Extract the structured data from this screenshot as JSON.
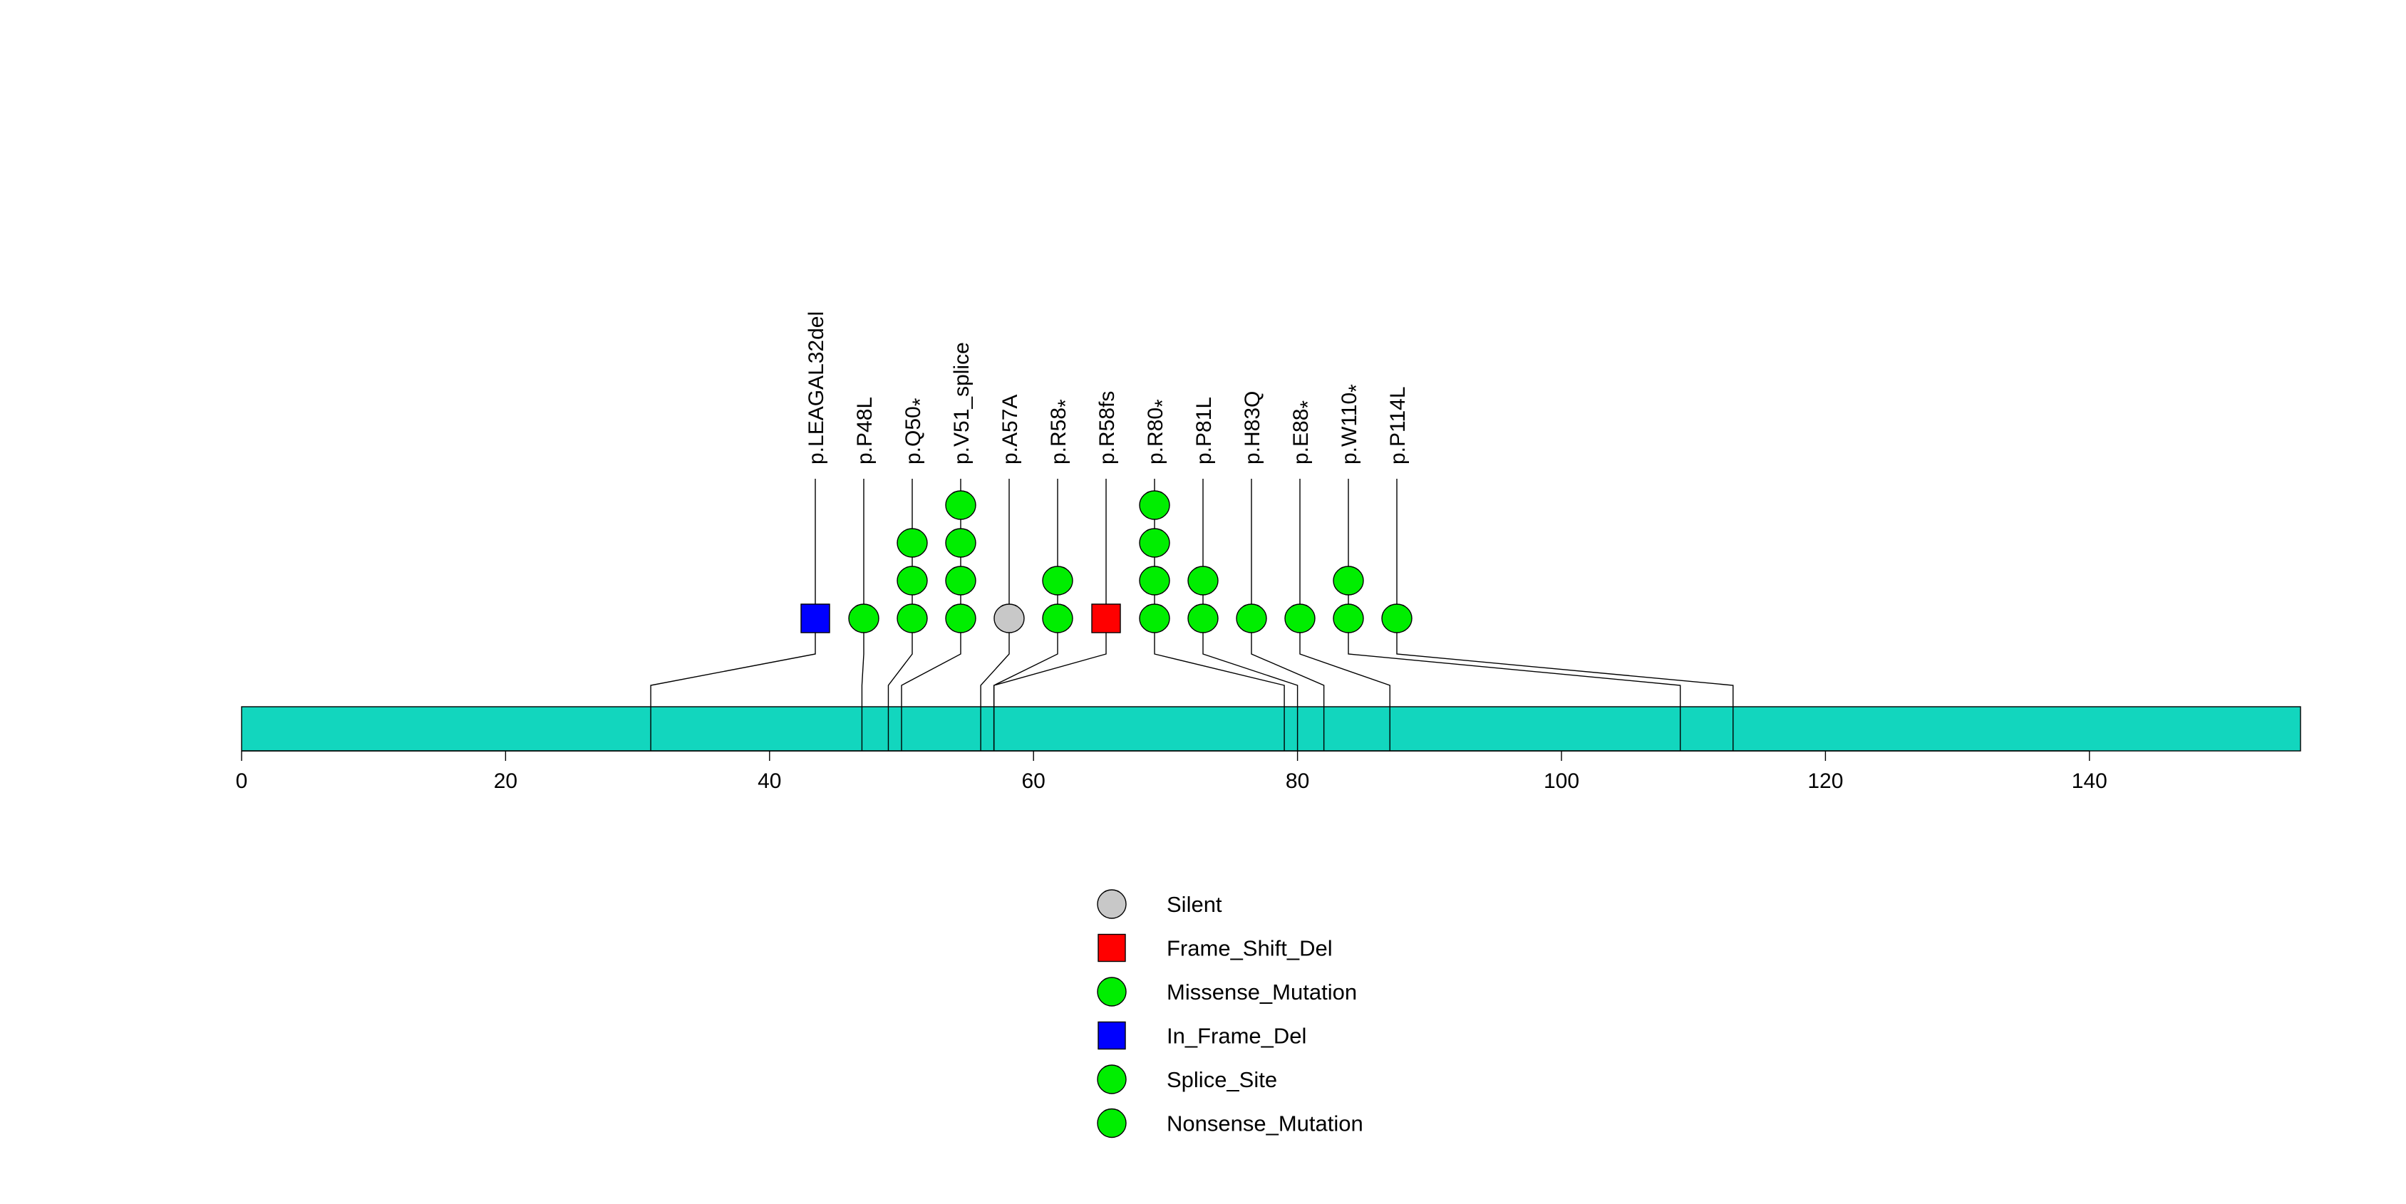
{
  "chart_data": {
    "type": "lollipop",
    "title": "",
    "xlabel": "",
    "ylabel": "",
    "protein_length": 156,
    "xlim": [
      0,
      156
    ],
    "x_ticks": [
      0,
      20,
      40,
      60,
      80,
      100,
      120,
      140
    ],
    "domain_color": "#12D6BE",
    "mutations": [
      {
        "label": "p.LEAGAL32del",
        "position": 31,
        "types": [
          "In_Frame_Del"
        ]
      },
      {
        "label": "p.P48L",
        "position": 47,
        "types": [
          "Missense_Mutation"
        ]
      },
      {
        "label": "p.Q50*",
        "position": 49,
        "types": [
          "Missense_Mutation",
          "Missense_Mutation",
          "Missense_Mutation"
        ]
      },
      {
        "label": "p.V51_splice",
        "position": 50,
        "types": [
          "Splice_Site",
          "Splice_Site",
          "Splice_Site",
          "Splice_Site"
        ]
      },
      {
        "label": "p.A57A",
        "position": 56,
        "types": [
          "Silent"
        ]
      },
      {
        "label": "p.R58*",
        "position": 57,
        "types": [
          "Missense_Mutation",
          "Missense_Mutation"
        ]
      },
      {
        "label": "p.R58fs",
        "position": 57,
        "types": [
          "Frame_Shift_Del"
        ]
      },
      {
        "label": "p.R80*",
        "position": 79,
        "types": [
          "Nonsense_Mutation",
          "Nonsense_Mutation",
          "Nonsense_Mutation",
          "Nonsense_Mutation"
        ]
      },
      {
        "label": "p.P81L",
        "position": 80,
        "types": [
          "Missense_Mutation",
          "Missense_Mutation"
        ]
      },
      {
        "label": "p.H83Q",
        "position": 82,
        "types": [
          "Missense_Mutation"
        ]
      },
      {
        "label": "p.E88*",
        "position": 87,
        "types": [
          "Missense_Mutation"
        ]
      },
      {
        "label": "p.W110*",
        "position": 109,
        "types": [
          "Missense_Mutation",
          "Missense_Mutation"
        ]
      },
      {
        "label": "p.P114L",
        "position": 113,
        "types": [
          "Missense_Mutation"
        ]
      }
    ],
    "legend": [
      {
        "label": "Silent",
        "shape": "circle",
        "color": "#C8C8C8"
      },
      {
        "label": "Frame_Shift_Del",
        "shape": "square",
        "color": "#FF0000"
      },
      {
        "label": "Missense_Mutation",
        "shape": "circle",
        "color": "#00EE00"
      },
      {
        "label": "In_Frame_Del",
        "shape": "square",
        "color": "#0000FF"
      },
      {
        "label": "Splice_Site",
        "shape": "circle",
        "color": "#00EE00"
      },
      {
        "label": "Nonsense_Mutation",
        "shape": "circle",
        "color": "#00EE00"
      }
    ]
  }
}
